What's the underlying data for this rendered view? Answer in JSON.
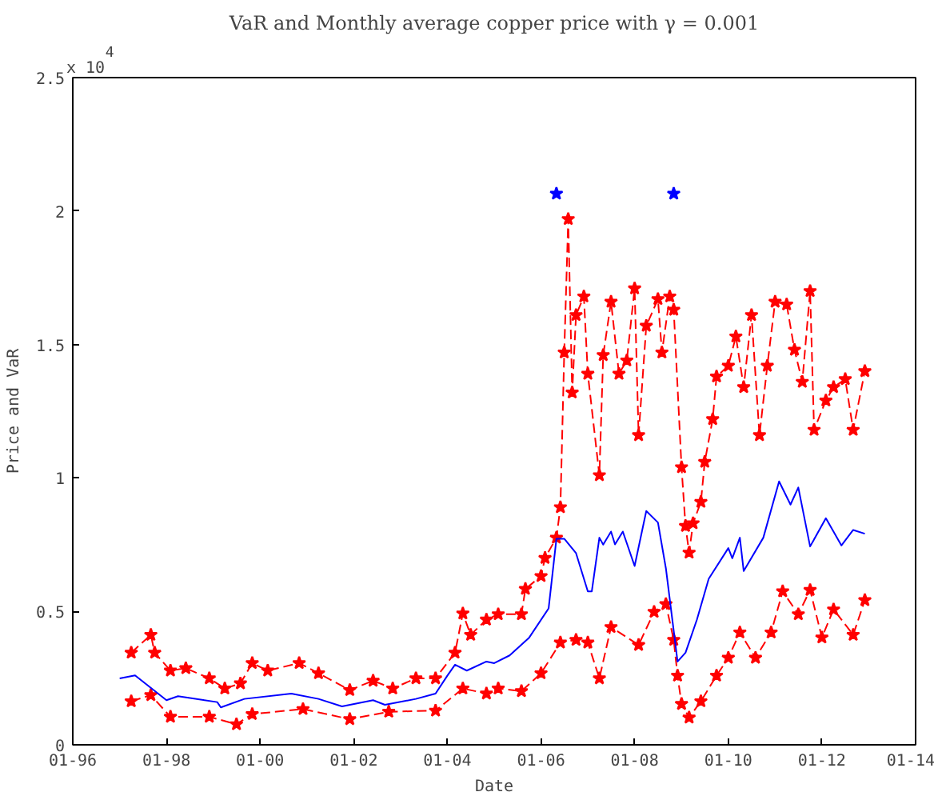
{
  "chart_data": {
    "type": "line",
    "title": "VaR and Monthly average copper price with γ = 0.001",
    "xlabel": "Date",
    "ylabel": "Price and VaR",
    "annotations": [
      "x 10$^{4}$"
    ],
    "xlim": [
      "1996-01",
      "2014-01"
    ],
    "xticks": [
      {
        "value": "1996-01",
        "label": "01-96"
      },
      {
        "value": "1998-01",
        "label": "01-98"
      },
      {
        "value": "2000-01",
        "label": "01-00"
      },
      {
        "value": "2002-01",
        "label": "01-02"
      },
      {
        "value": "2004-01",
        "label": "01-04"
      },
      {
        "value": "2006-01",
        "label": "01-06"
      },
      {
        "value": "2008-01",
        "label": "01-08"
      },
      {
        "value": "2010-01",
        "label": "01-10"
      },
      {
        "value": "2012-01",
        "label": "01-12"
      },
      {
        "value": "2014-01",
        "label": "01-14"
      }
    ],
    "ylim": [
      0,
      2.5
    ],
    "yticks": [
      0,
      0.5,
      1,
      1.5,
      2,
      2.5
    ],
    "series": [
      {
        "color": "#ff0000",
        "marker": "star",
        "line_style": "dashed",
        "x": [
          "1997-04",
          "1997-09",
          "1997-10",
          "1998-02",
          "1998-06",
          "1998-12",
          "1999-04",
          "1999-08",
          "1999-11",
          "2000-03",
          "2000-11",
          "2001-04",
          "2001-12",
          "2002-06",
          "2002-11",
          "2003-05",
          "2003-10",
          "2004-03",
          "2004-05",
          "2004-07",
          "2004-11",
          "2005-02",
          "2005-08",
          "2005-09",
          "2006-01",
          "2006-02",
          "2006-05",
          "2006-06",
          "2006-07",
          "2006-08",
          "2006-09",
          "2006-10",
          "2006-12",
          "2007-01",
          "2007-04",
          "2007-05",
          "2007-07",
          "2007-09",
          "2007-11",
          "2008-01",
          "2008-02",
          "2008-04",
          "2008-07",
          "2008-08",
          "2008-10",
          "2008-11",
          "2009-01",
          "2009-02",
          "2009-03",
          "2009-04",
          "2009-06",
          "2009-07",
          "2009-09",
          "2009-10",
          "2010-01",
          "2010-03",
          "2010-05",
          "2010-07",
          "2010-09",
          "2010-11",
          "2011-01",
          "2011-04",
          "2011-06",
          "2011-08",
          "2011-10",
          "2011-11",
          "2012-02",
          "2012-04",
          "2012-07",
          "2012-09",
          "2012-12"
        ],
        "values": [
          0.345,
          0.412,
          0.345,
          0.278,
          0.287,
          0.249,
          0.211,
          0.23,
          0.306,
          0.278,
          0.306,
          0.268,
          0.205,
          0.24,
          0.211,
          0.249,
          0.249,
          0.345,
          0.492,
          0.412,
          0.469,
          0.489,
          0.489,
          0.584,
          0.632,
          0.7,
          0.776,
          0.89,
          1.47,
          1.97,
          1.32,
          1.61,
          1.68,
          1.39,
          1.01,
          1.46,
          1.66,
          1.39,
          1.44,
          1.71,
          1.16,
          1.57,
          1.67,
          1.47,
          1.68,
          1.63,
          1.04,
          0.82,
          0.72,
          0.83,
          0.91,
          1.06,
          1.22,
          1.38,
          1.42,
          1.53,
          1.34,
          1.61,
          1.16,
          1.42,
          1.66,
          1.65,
          1.48,
          1.36,
          1.7,
          1.18,
          1.29,
          1.34,
          1.37,
          1.18,
          1.4
        ]
      },
      {
        "color": "#ff0000",
        "marker": "star",
        "line_style": "dashed",
        "x": [
          "1997-04",
          "1997-09",
          "1998-02",
          "1998-12",
          "1999-07",
          "1999-11",
          "2000-12",
          "2001-12",
          "2002-10",
          "2003-10",
          "2004-05",
          "2004-11",
          "2005-02",
          "2005-08",
          "2006-01",
          "2006-06",
          "2006-10",
          "2007-01",
          "2007-04",
          "2007-07",
          "2008-02",
          "2008-06",
          "2008-09",
          "2008-11",
          "2008-12",
          "2009-01",
          "2009-03",
          "2009-06",
          "2009-10",
          "2010-01",
          "2010-04",
          "2010-08",
          "2010-12",
          "2011-03",
          "2011-07",
          "2011-10",
          "2012-01",
          "2012-04",
          "2012-09",
          "2012-12"
        ],
        "values": [
          0.163,
          0.186,
          0.105,
          0.105,
          0.077,
          0.115,
          0.134,
          0.096,
          0.124,
          0.128,
          0.211,
          0.192,
          0.211,
          0.201,
          0.268,
          0.383,
          0.393,
          0.383,
          0.249,
          0.441,
          0.374,
          0.498,
          0.527,
          0.393,
          0.259,
          0.153,
          0.102,
          0.163,
          0.259,
          0.326,
          0.421,
          0.326,
          0.421,
          0.575,
          0.489,
          0.58,
          0.402,
          0.507,
          0.412,
          0.542
        ]
      },
      {
        "color": "#0000ff",
        "marker": "none",
        "line_style": "solid",
        "x": [
          "1997-01",
          "1997-05",
          "1998-01",
          "1998-04",
          "1999-02",
          "1999-03",
          "1999-09",
          "2000-09",
          "2001-04",
          "2001-10",
          "2002-06",
          "2002-09",
          "2003-05",
          "2003-10",
          "2004-01",
          "2004-03",
          "2004-06",
          "2004-11",
          "2005-01",
          "2005-05",
          "2005-10",
          "2006-03",
          "2006-05",
          "2006-07",
          "2006-10",
          "2007-01",
          "2007-02",
          "2007-04",
          "2007-05",
          "2007-07",
          "2007-08",
          "2007-10",
          "2008-01",
          "2008-04",
          "2008-07",
          "2008-09",
          "2008-12",
          "2009-02",
          "2009-05",
          "2009-08",
          "2010-01",
          "2010-02",
          "2010-04",
          "2010-05",
          "2010-10",
          "2011-02",
          "2011-05",
          "2011-07",
          "2011-10",
          "2012-02",
          "2012-06",
          "2012-09",
          "2012-12"
        ],
        "values": [
          0.249,
          0.26,
          0.167,
          0.182,
          0.16,
          0.14,
          0.172,
          0.192,
          0.172,
          0.144,
          0.167,
          0.15,
          0.172,
          0.192,
          0.259,
          0.3,
          0.278,
          0.312,
          0.306,
          0.335,
          0.402,
          0.511,
          0.772,
          0.772,
          0.718,
          0.575,
          0.575,
          0.776,
          0.75,
          0.799,
          0.751,
          0.799,
          0.67,
          0.876,
          0.833,
          0.661,
          0.312,
          0.345,
          0.469,
          0.622,
          0.737,
          0.699,
          0.776,
          0.651,
          0.776,
          0.987,
          0.9,
          0.964,
          0.743,
          0.849,
          0.747,
          0.805,
          0.791
        ]
      },
      {
        "type": "scatter",
        "color": "#0000ff",
        "marker": "star",
        "x": [
          "2006-05",
          "2008-11"
        ],
        "values": [
          2.065,
          2.065
        ]
      }
    ]
  }
}
